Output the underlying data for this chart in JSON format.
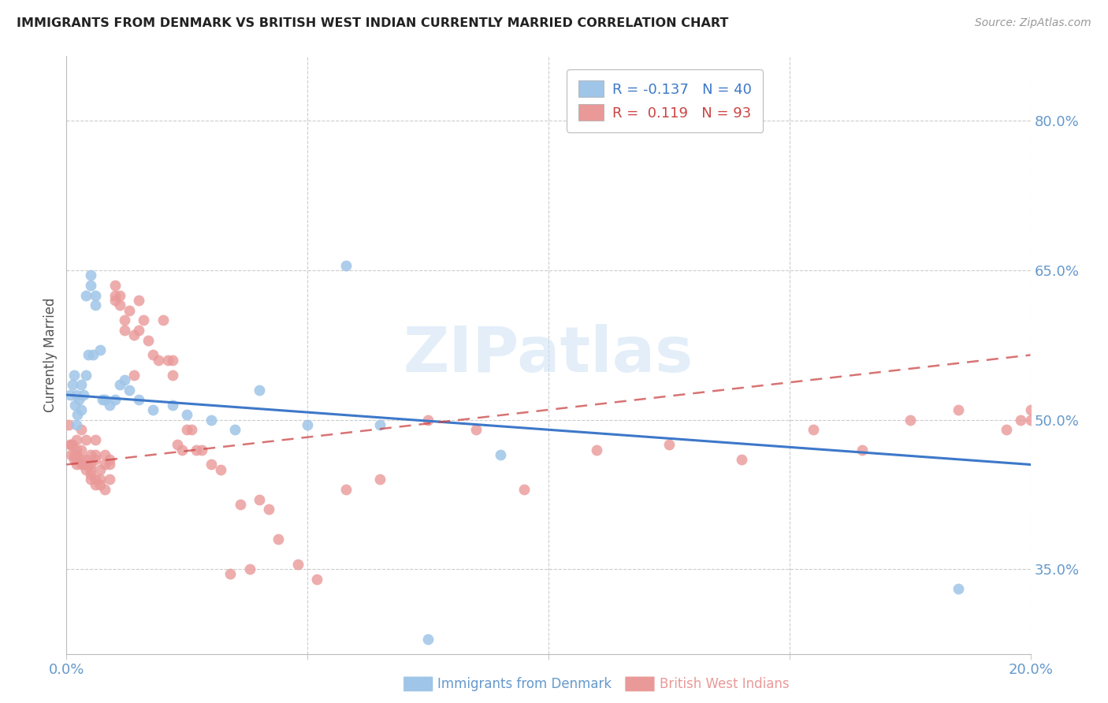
{
  "title": "IMMIGRANTS FROM DENMARK VS BRITISH WEST INDIAN CURRENTLY MARRIED CORRELATION CHART",
  "source": "Source: ZipAtlas.com",
  "ylabel": "Currently Married",
  "ytick_labels": [
    "80.0%",
    "65.0%",
    "50.0%",
    "35.0%"
  ],
  "ytick_values": [
    0.8,
    0.65,
    0.5,
    0.35
  ],
  "legend_blue_R": "-0.137",
  "legend_blue_N": "40",
  "legend_pink_R": "0.119",
  "legend_pink_N": "93",
  "blue_color": "#9fc5e8",
  "pink_color": "#ea9999",
  "blue_line_color": "#3d78c9",
  "pink_line_color": "#cc4444",
  "grid_color": "#cccccc",
  "axis_label_color": "#6699cc",
  "title_color": "#222222",
  "xlim": [
    0.0,
    0.2
  ],
  "ylim": [
    0.265,
    0.865
  ],
  "blue_x": [
    0.0008,
    0.0012,
    0.0015,
    0.0018,
    0.002,
    0.002,
    0.0022,
    0.0025,
    0.003,
    0.003,
    0.0035,
    0.004,
    0.004,
    0.0045,
    0.005,
    0.005,
    0.0055,
    0.006,
    0.006,
    0.007,
    0.0075,
    0.008,
    0.009,
    0.01,
    0.011,
    0.012,
    0.013,
    0.015,
    0.018,
    0.022,
    0.025,
    0.03,
    0.035,
    0.04,
    0.05,
    0.058,
    0.065,
    0.075,
    0.09,
    0.185
  ],
  "blue_y": [
    0.525,
    0.535,
    0.545,
    0.515,
    0.525,
    0.495,
    0.505,
    0.52,
    0.51,
    0.535,
    0.525,
    0.625,
    0.545,
    0.565,
    0.645,
    0.635,
    0.565,
    0.625,
    0.615,
    0.57,
    0.52,
    0.52,
    0.515,
    0.52,
    0.535,
    0.54,
    0.53,
    0.52,
    0.51,
    0.515,
    0.505,
    0.5,
    0.49,
    0.53,
    0.495,
    0.655,
    0.495,
    0.28,
    0.465,
    0.33
  ],
  "pink_x": [
    0.0005,
    0.0008,
    0.001,
    0.001,
    0.0012,
    0.0015,
    0.0015,
    0.002,
    0.002,
    0.002,
    0.002,
    0.002,
    0.003,
    0.003,
    0.003,
    0.003,
    0.0035,
    0.004,
    0.004,
    0.004,
    0.004,
    0.0045,
    0.005,
    0.005,
    0.005,
    0.005,
    0.005,
    0.006,
    0.006,
    0.006,
    0.006,
    0.006,
    0.007,
    0.007,
    0.007,
    0.008,
    0.008,
    0.008,
    0.009,
    0.009,
    0.009,
    0.01,
    0.01,
    0.01,
    0.011,
    0.011,
    0.012,
    0.012,
    0.013,
    0.014,
    0.014,
    0.015,
    0.015,
    0.016,
    0.017,
    0.018,
    0.019,
    0.02,
    0.021,
    0.022,
    0.022,
    0.023,
    0.024,
    0.025,
    0.026,
    0.027,
    0.028,
    0.03,
    0.032,
    0.034,
    0.036,
    0.038,
    0.04,
    0.042,
    0.044,
    0.048,
    0.052,
    0.058,
    0.065,
    0.075,
    0.085,
    0.095,
    0.11,
    0.125,
    0.14,
    0.155,
    0.165,
    0.175,
    0.185,
    0.195,
    0.198,
    0.2,
    0.2
  ],
  "pink_y": [
    0.495,
    0.475,
    0.475,
    0.465,
    0.475,
    0.46,
    0.465,
    0.465,
    0.47,
    0.455,
    0.46,
    0.48,
    0.455,
    0.47,
    0.46,
    0.49,
    0.455,
    0.455,
    0.46,
    0.45,
    0.48,
    0.455,
    0.45,
    0.44,
    0.455,
    0.445,
    0.465,
    0.44,
    0.435,
    0.46,
    0.465,
    0.48,
    0.435,
    0.45,
    0.44,
    0.455,
    0.465,
    0.43,
    0.44,
    0.455,
    0.46,
    0.62,
    0.625,
    0.635,
    0.615,
    0.625,
    0.6,
    0.59,
    0.61,
    0.585,
    0.545,
    0.62,
    0.59,
    0.6,
    0.58,
    0.565,
    0.56,
    0.6,
    0.56,
    0.56,
    0.545,
    0.475,
    0.47,
    0.49,
    0.49,
    0.47,
    0.47,
    0.455,
    0.45,
    0.345,
    0.415,
    0.35,
    0.42,
    0.41,
    0.38,
    0.355,
    0.34,
    0.43,
    0.44,
    0.5,
    0.49,
    0.43,
    0.47,
    0.475,
    0.46,
    0.49,
    0.47,
    0.5,
    0.51,
    0.49,
    0.5,
    0.51,
    0.5
  ],
  "blue_line_x": [
    0.0,
    0.2
  ],
  "blue_line_y": [
    0.525,
    0.455
  ],
  "pink_line_x": [
    0.0,
    0.2
  ],
  "pink_line_y": [
    0.455,
    0.565
  ]
}
